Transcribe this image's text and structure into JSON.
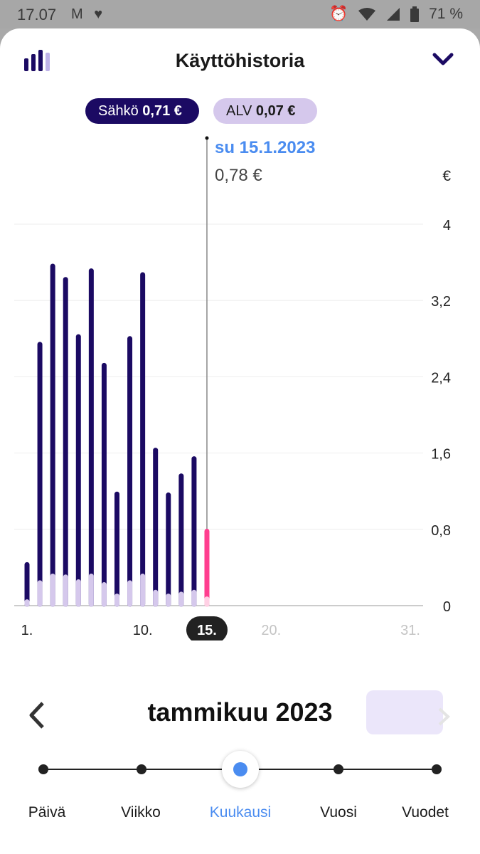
{
  "status_bar": {
    "time": "17.07",
    "battery": "71 %",
    "icons": [
      "gmail-icon",
      "heart-icon",
      "alarm-icon",
      "wifi-icon",
      "signal-icon",
      "battery-icon"
    ]
  },
  "header": {
    "title": "Käyttöhistoria",
    "icon": "bar-chart-icon",
    "collapse_icon": "chevron-down-icon"
  },
  "legend": {
    "sahko": {
      "label": "Sähkö",
      "value": "0,71 €"
    },
    "alv": {
      "label": "ALV",
      "value": "0,07 €"
    }
  },
  "selection": {
    "date": "su 15.1.2023",
    "value": "0,78 €"
  },
  "colors": {
    "sahko": "#1b0a63",
    "alv": "#d5c8ec",
    "selected": "#ff3e8f",
    "accent": "#4a8cf0"
  },
  "chart_data": {
    "type": "bar",
    "stacked": true,
    "unit": "€",
    "x": [
      1,
      2,
      3,
      4,
      5,
      6,
      7,
      8,
      9,
      10,
      11,
      12,
      13,
      14,
      15
    ],
    "series": [
      {
        "name": "Sähkö",
        "values": [
          0.39,
          2.5,
          3.25,
          3.12,
          2.57,
          3.2,
          2.3,
          1.07,
          2.56,
          3.16,
          1.49,
          1.06,
          1.24,
          1.4,
          0.71
        ]
      },
      {
        "name": "ALV",
        "values": [
          0.04,
          0.24,
          0.31,
          0.3,
          0.25,
          0.31,
          0.22,
          0.1,
          0.24,
          0.31,
          0.14,
          0.1,
          0.12,
          0.14,
          0.07
        ]
      }
    ],
    "selected_index": 14,
    "ylim": [
      0,
      4
    ],
    "yticks": [
      "4",
      "3,2",
      "2,4",
      "1,6",
      "0,8",
      "0"
    ],
    "ytick_values": [
      4,
      3.2,
      2.4,
      1.6,
      0.8,
      0
    ],
    "xticks": [
      "1.",
      "10.",
      "15.",
      "20.",
      "31."
    ],
    "xtick_values": [
      1,
      10,
      15,
      20,
      31
    ],
    "x_range": [
      1,
      31
    ],
    "grid": true
  },
  "period": {
    "title": "tammikuu 2023",
    "prev_icon": "chevron-left-icon",
    "next_icon": "chevron-right-icon"
  },
  "range_selector": {
    "options": [
      "Päivä",
      "Viikko",
      "Kuukausi",
      "Vuosi",
      "Vuodet"
    ],
    "selected": "Kuukausi"
  }
}
